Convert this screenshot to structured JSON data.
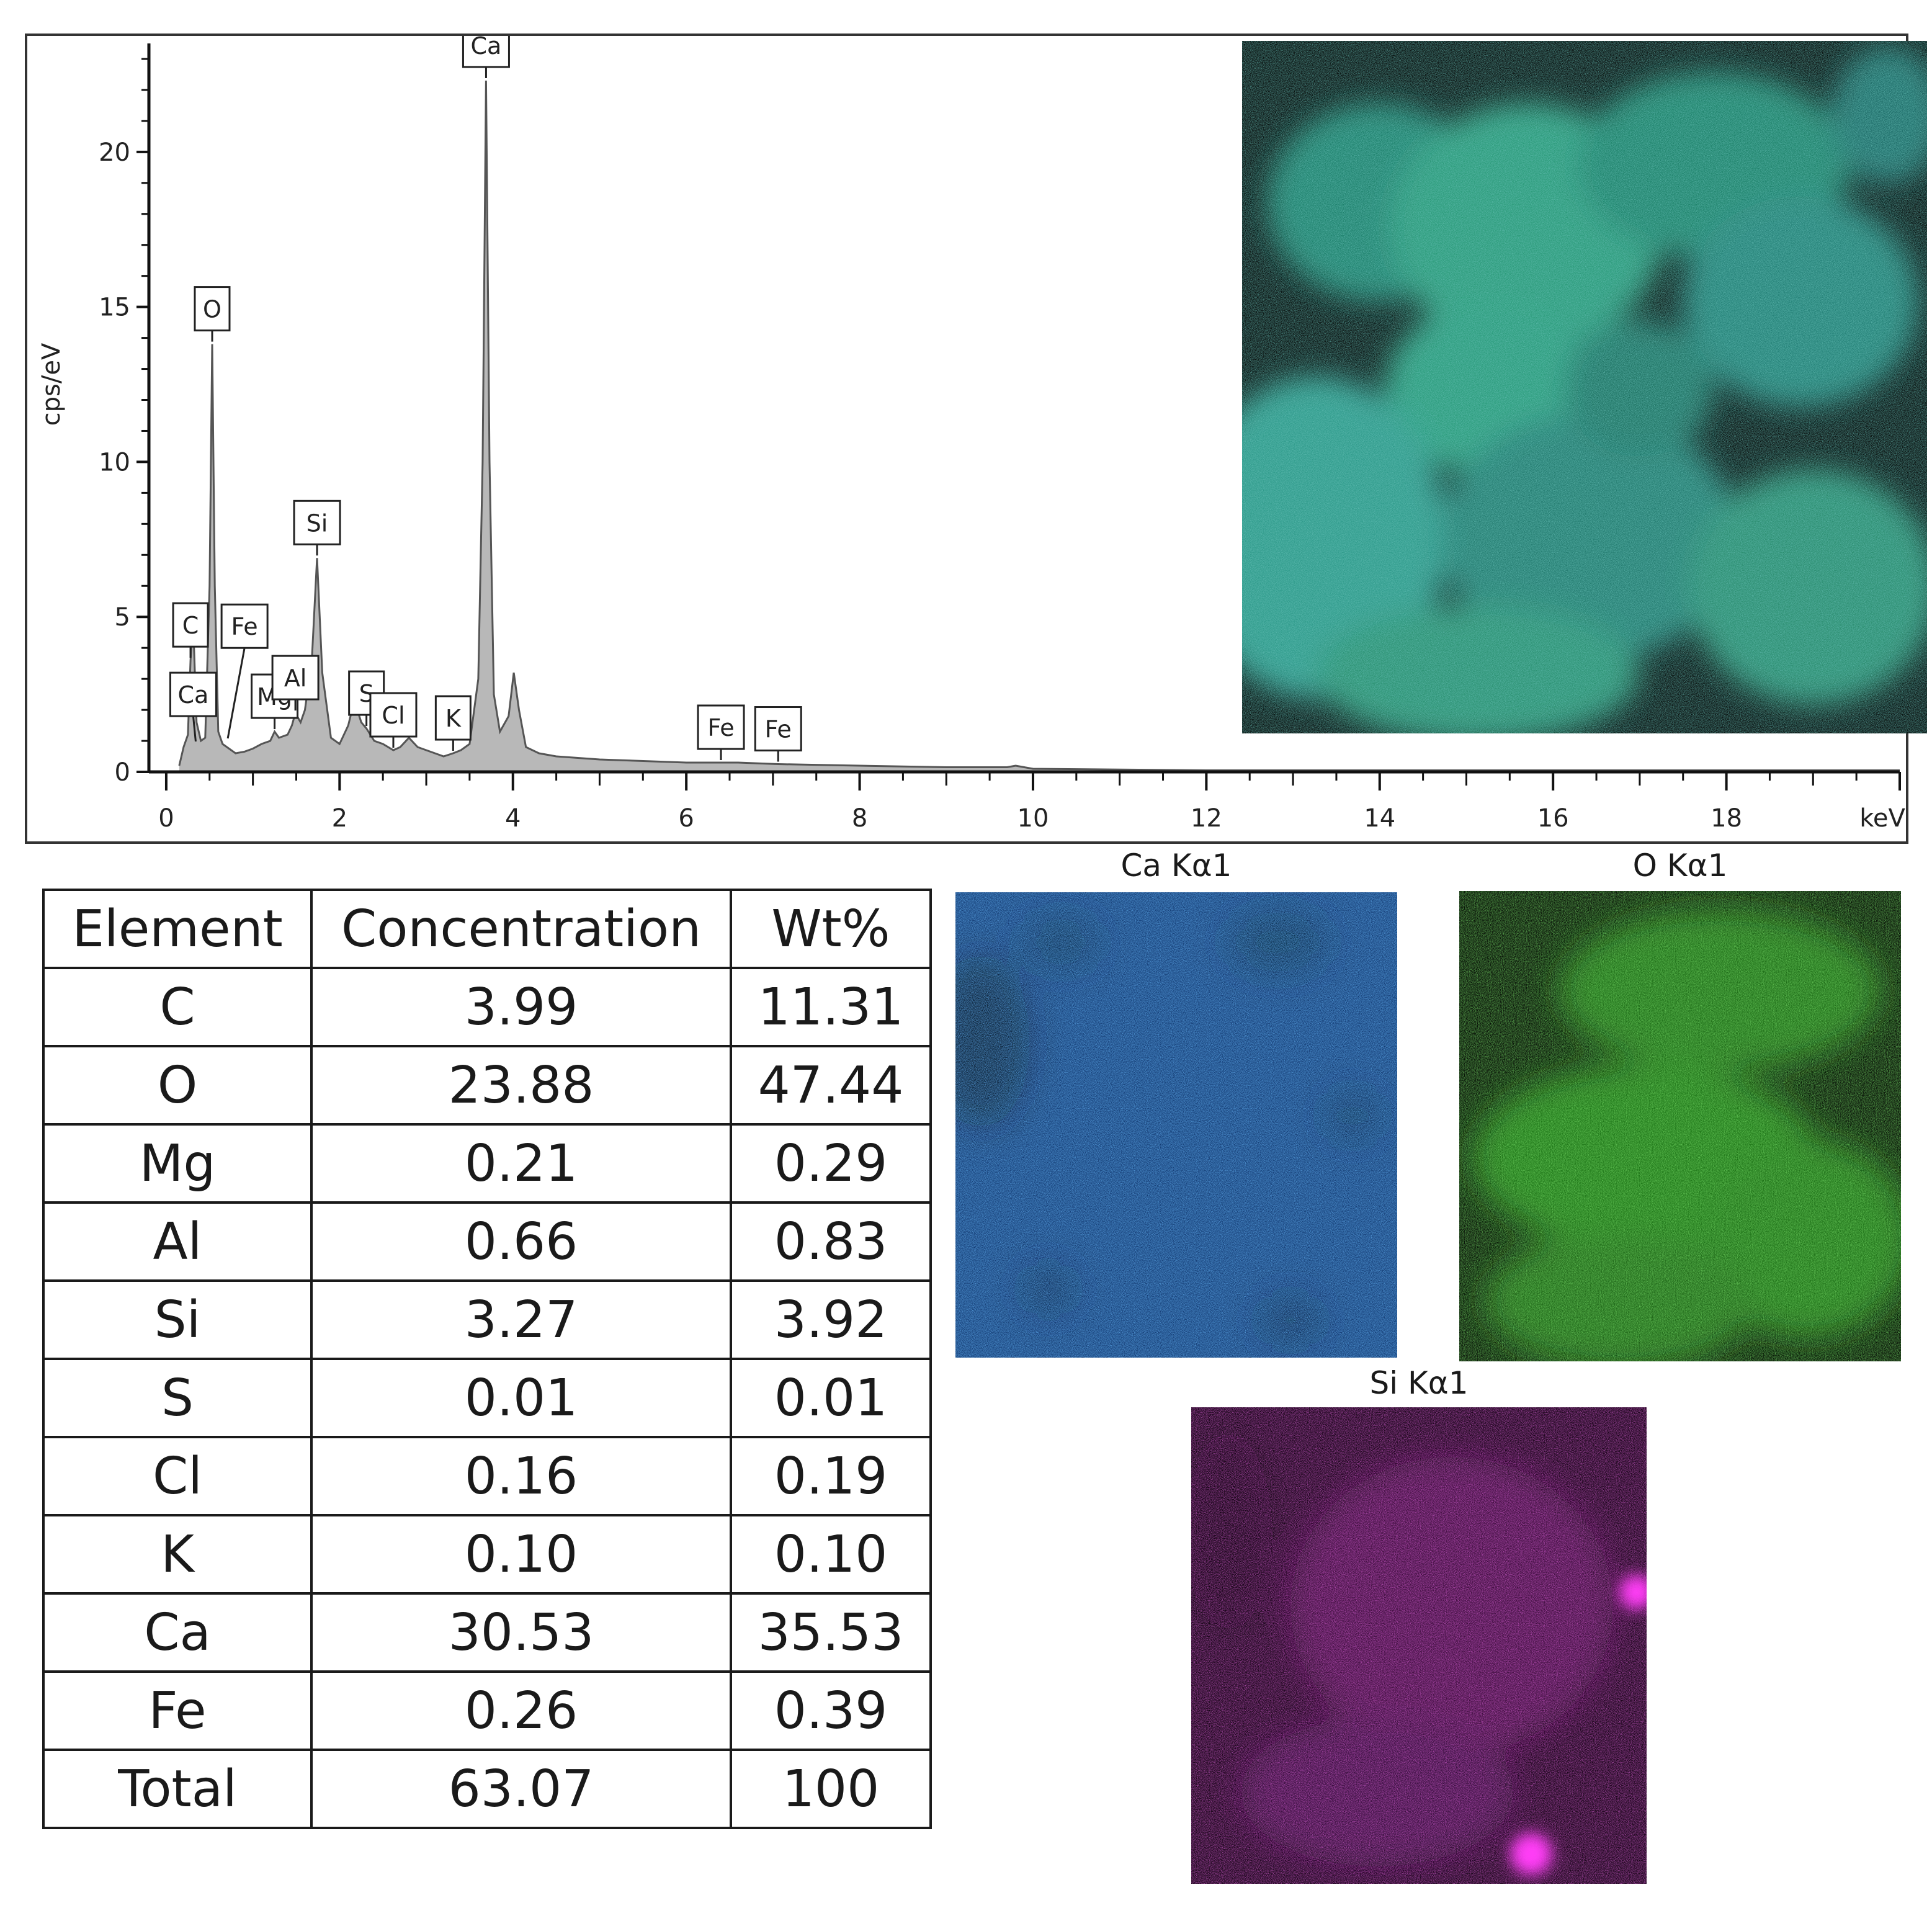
{
  "chart_data": [
    {
      "type": "line",
      "xlabel": "keV",
      "ylabel": "cps/eV",
      "xlim": [
        -0.2,
        20
      ],
      "ylim": [
        0,
        23.5
      ],
      "x_ticks": [
        0,
        2,
        4,
        6,
        8,
        10,
        12,
        14,
        16,
        18
      ],
      "y_ticks": [
        0,
        5,
        10,
        15,
        20
      ],
      "grid": false,
      "series": [
        {
          "x": [
            0.15,
            0.2,
            0.25,
            0.28,
            0.31,
            0.35,
            0.4,
            0.45,
            0.5,
            0.53,
            0.56,
            0.6,
            0.65,
            0.7,
            0.75,
            0.8,
            0.9,
            1.0,
            1.1,
            1.2,
            1.25,
            1.3,
            1.4,
            1.45,
            1.49,
            1.55,
            1.6,
            1.68,
            1.74,
            1.8,
            1.9,
            2.0,
            2.1,
            2.17,
            2.25,
            2.31,
            2.4,
            2.5,
            2.62,
            2.7,
            2.8,
            2.9,
            3.0,
            3.1,
            3.2,
            3.31,
            3.4,
            3.5,
            3.6,
            3.65,
            3.69,
            3.73,
            3.78,
            3.85,
            3.95,
            4.01,
            4.07,
            4.15,
            4.3,
            4.5,
            5.0,
            6.0,
            6.4,
            6.6,
            7.06,
            8.0,
            9.0,
            9.7,
            9.8,
            10.0,
            12.0,
            14.0,
            16.0,
            18.0,
            20.0
          ],
          "y": [
            0.2,
            0.8,
            1.2,
            3.6,
            4.9,
            1.6,
            1.0,
            1.1,
            6.0,
            13.8,
            6.0,
            1.3,
            0.9,
            0.8,
            0.7,
            0.6,
            0.65,
            0.75,
            0.9,
            1.0,
            1.3,
            1.1,
            1.2,
            1.5,
            1.9,
            1.6,
            2.0,
            3.6,
            6.9,
            3.2,
            1.1,
            0.9,
            1.5,
            2.3,
            1.6,
            1.4,
            1.0,
            0.9,
            0.7,
            0.8,
            1.1,
            0.8,
            0.7,
            0.6,
            0.5,
            0.6,
            0.7,
            0.9,
            3.0,
            10.0,
            22.3,
            10.0,
            2.5,
            1.3,
            1.8,
            3.2,
            2.0,
            0.8,
            0.6,
            0.5,
            0.4,
            0.3,
            0.3,
            0.3,
            0.25,
            0.2,
            0.15,
            0.15,
            0.2,
            0.1,
            0.05,
            0.05,
            0.05,
            0.05,
            0.05
          ]
        }
      ],
      "peak_labels": [
        {
          "text": "C",
          "x": 0.28,
          "y": 3.6
        },
        {
          "text": "Ca",
          "x": 0.34,
          "y": 0.9
        },
        {
          "text": "O",
          "x": 0.53,
          "y": 13.8
        },
        {
          "text": "Fe",
          "x": 0.71,
          "y": 1.0
        },
        {
          "text": "Mg",
          "x": 1.25,
          "y": 1.3
        },
        {
          "text": "Al",
          "x": 1.49,
          "y": 1.9
        },
        {
          "text": "Si",
          "x": 1.74,
          "y": 6.9
        },
        {
          "text": "S",
          "x": 2.31,
          "y": 1.4
        },
        {
          "text": "Cl",
          "x": 2.62,
          "y": 0.7
        },
        {
          "text": "K",
          "x": 3.31,
          "y": 0.6
        },
        {
          "text": "Ca",
          "x": 3.69,
          "y": 22.3
        },
        {
          "text": "Fe",
          "x": 6.4,
          "y": 0.3
        },
        {
          "text": "Fe",
          "x": 7.06,
          "y": 0.25
        }
      ]
    },
    {
      "type": "table",
      "columns": [
        "Element",
        "Concentration",
        "Wt%"
      ],
      "rows": [
        [
          "C",
          "3.99",
          "11.31"
        ],
        [
          "O",
          "23.88",
          "47.44"
        ],
        [
          "Mg",
          "0.21",
          "0.29"
        ],
        [
          "Al",
          "0.66",
          "0.83"
        ],
        [
          "Si",
          "3.27",
          "3.92"
        ],
        [
          "S",
          "0.01",
          "0.01"
        ],
        [
          "Cl",
          "0.16",
          "0.19"
        ],
        [
          "K",
          "0.10",
          "0.10"
        ],
        [
          "Ca",
          "30.53",
          "35.53"
        ],
        [
          "Fe",
          "0.26",
          "0.39"
        ],
        [
          "Total",
          "63.07",
          "100"
        ]
      ]
    }
  ],
  "maps": [
    {
      "title": "Ca Kα1",
      "color": "#2f7fd6"
    },
    {
      "title": "O Kα1",
      "color": "#3fc22a"
    },
    {
      "title": "Si Kα1",
      "color": "#e02ad8"
    }
  ],
  "overlay_colors": [
    "#2f7fd6",
    "#3fc22a",
    "#e02ad8"
  ]
}
